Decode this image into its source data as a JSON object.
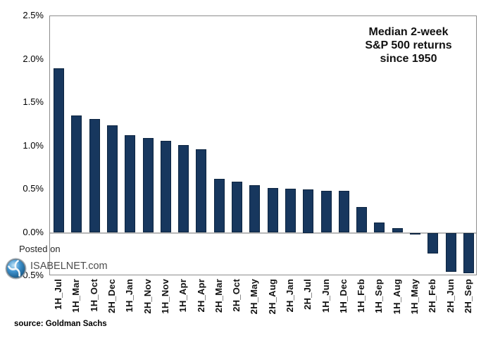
{
  "title": {
    "lines": [
      "Median 2-week",
      "S&P 500 returns",
      "since 1950"
    ]
  },
  "watermark": {
    "posted_on": "Posted on",
    "site": "ISABELNET.com",
    "logo": "isabelnet-globe-logo"
  },
  "source": "source: Goldman Sachs",
  "colors": {
    "bar": "#17375E",
    "bar_border": "#0C2440",
    "plot_border": "#8C8C8C",
    "zero_line": "#B8B8B8",
    "text": "#000000",
    "watermark_text": "#4D4D4D",
    "logo_blue": "#2F7FC1"
  },
  "chart_data": {
    "type": "bar",
    "title": "Median 2-week S&P 500 returns since 1950",
    "xlabel": "",
    "ylabel": "",
    "ylim": [
      -0.5,
      2.5
    ],
    "grid": false,
    "legend": false,
    "value_unit": "percent",
    "yticks": [
      "2.5%",
      "2.0%",
      "1.5%",
      "1.0%",
      "0.5%",
      "0.0%",
      "-0.5%"
    ],
    "categories": [
      "1H_Jul",
      "1H_Mar",
      "1H_Oct",
      "2H_Dec",
      "1H_Jan",
      "2H_Nov",
      "1H_Nov",
      "1H_Apr",
      "2H_Apr",
      "2H_Mar",
      "2H_Oct",
      "2H_May",
      "2H_Aug",
      "2H_Jan",
      "2H_Jul",
      "1H_Jun",
      "1H_Dec",
      "1H_Feb",
      "1H_Sep",
      "1H_Aug",
      "1H_May",
      "2H_Feb",
      "2H_Jun",
      "2H_Sep"
    ],
    "values": [
      1.9,
      1.35,
      1.31,
      1.24,
      1.13,
      1.09,
      1.06,
      1.01,
      0.96,
      0.62,
      0.59,
      0.55,
      0.52,
      0.51,
      0.5,
      0.48,
      0.48,
      0.3,
      0.12,
      0.05,
      -0.02,
      -0.24,
      -0.45,
      -0.47
    ]
  }
}
